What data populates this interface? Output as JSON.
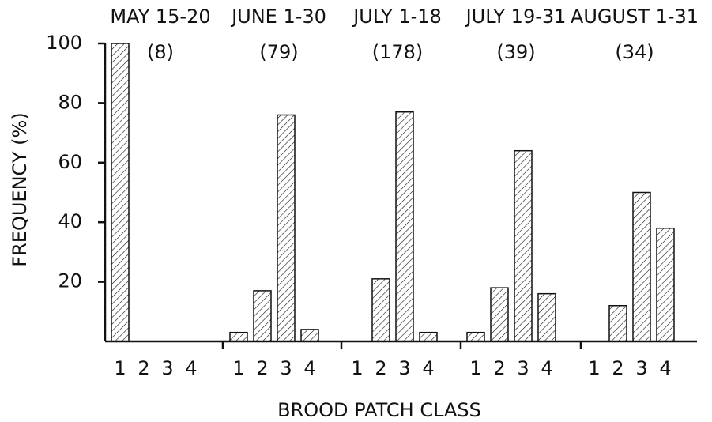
{
  "chart_data": {
    "type": "bar",
    "y_label": "FREQUENCY (%)",
    "x_label": "BROOD PATCH CLASS",
    "ylim": [
      0,
      100
    ],
    "yticks": [
      20,
      40,
      60,
      80,
      100
    ],
    "color": "#111111",
    "groups": [
      {
        "title": "MAY 15-20",
        "count": "(8)",
        "categories": [
          "1",
          "2",
          "3",
          "4"
        ],
        "values": [
          100,
          0,
          0,
          0
        ]
      },
      {
        "title": "JUNE 1-30",
        "count": "(79)",
        "categories": [
          "1",
          "2",
          "3",
          "4"
        ],
        "values": [
          3,
          17,
          76,
          4
        ]
      },
      {
        "title": "JULY 1-18",
        "count": "(178)",
        "categories": [
          "1",
          "2",
          "3",
          "4"
        ],
        "values": [
          0,
          21,
          77,
          3
        ]
      },
      {
        "title": "JULY 19-31",
        "count": "(39)",
        "categories": [
          "1",
          "2",
          "3",
          "4"
        ],
        "values": [
          3,
          18,
          64,
          16
        ]
      },
      {
        "title": "AUGUST 1-31",
        "count": "(34)",
        "categories": [
          "1",
          "2",
          "3",
          "4"
        ],
        "values": [
          0,
          12,
          50,
          38
        ]
      }
    ]
  }
}
